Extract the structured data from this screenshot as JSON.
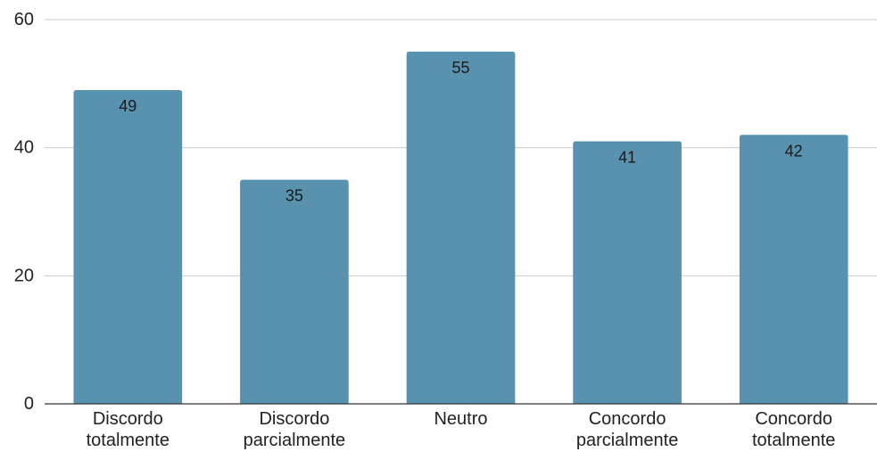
{
  "chart_data": {
    "type": "bar",
    "categories": [
      [
        "Discordo",
        "totalmente"
      ],
      [
        "Discordo",
        "parcialmente"
      ],
      [
        "Neutro"
      ],
      [
        "Concordo",
        "parcialmente"
      ],
      [
        "Concordo",
        "totalmente"
      ]
    ],
    "values": [
      49,
      35,
      55,
      41,
      42
    ],
    "y_ticks": [
      "0",
      "20",
      "40",
      "60"
    ],
    "ylim": [
      0,
      60
    ],
    "grid": true,
    "legend": "none",
    "bar_color": "#5892AF",
    "grid_color": "#cccccc",
    "axis_color": "#333333"
  }
}
